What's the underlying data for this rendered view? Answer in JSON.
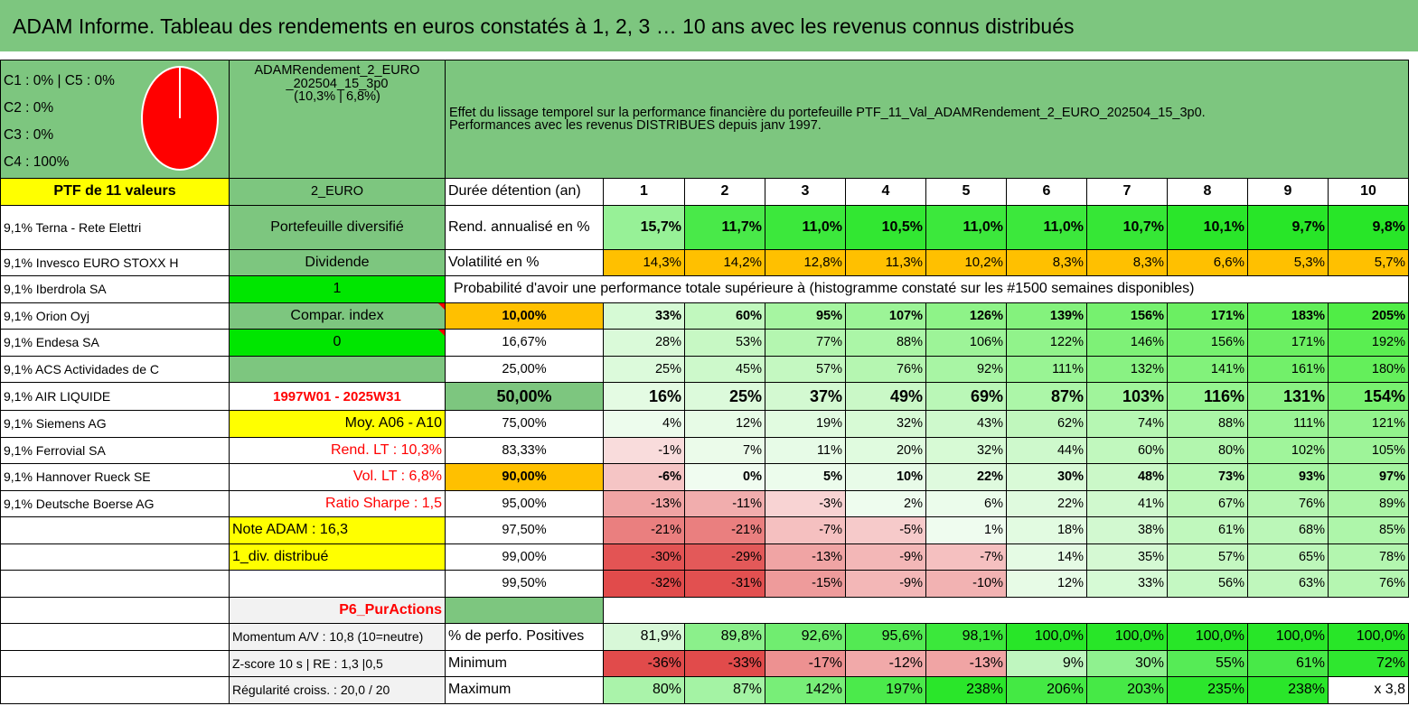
{
  "title": "ADAM Informe. Tableau des rendements en euros constatés à 1, 2, 3 … 10 ans avec les revenus connus distribués",
  "legend": {
    "lines": [
      "C1 : 0% | C5 : 0%",
      "C2 : 0%",
      "C3 : 0%",
      "C4 : 100%"
    ],
    "pie_color": "#ff0000"
  },
  "portfolio": {
    "name_line1": "ADAMRendement_2_EURO",
    "name_line2": "_202504_15_3p0",
    "name_line3": "(10,3% | 6,8%)"
  },
  "description": {
    "line1": "Effet du lissage temporel sur la performance financière du portefeuille PTF_11_Val_ADAMRendement_2_EURO_202504_15_3p0.",
    "line2": "Performances avec les revenus DISTRIBUES depuis janv 1997."
  },
  "ptf_label": "PTF de 11 valeurs",
  "currency": "2_EURO",
  "duration_label": "Durée détention (an)",
  "years": [
    "1",
    "2",
    "3",
    "4",
    "5",
    "6",
    "7",
    "8",
    "9",
    "10"
  ],
  "holdings": [
    "9,1% Terna - Rete Elettri",
    "9,1% Invesco EURO STOXX H",
    "9,1% Iberdrola SA",
    "9,1% Orion Oyj",
    "9,1% Endesa SA",
    "9,1% ACS Actividades de C",
    "9,1% AIR LIQUIDE",
    "9,1% Siemens AG",
    "9,1% Ferrovial SA",
    "9,1% Hannover Rueck SE",
    "9,1% Deutsche Boerse AG"
  ],
  "info": {
    "diversified": "Portefeuille diversifié",
    "dividend_label": "Dividende",
    "dividend_value": "1",
    "compar_label": "Compar. index",
    "compar_value": "0",
    "period": "1997W01 - 2025W31",
    "moy": "Moy. A06 - A10",
    "rend_lt": "Rend. LT : 10,3%",
    "vol_lt": "Vol. LT : 6,8%",
    "sharpe": "Ratio Sharpe : 1,5",
    "note": "Note ADAM : 16,3",
    "div": "1_div. distribué",
    "category": "P6_PurActions",
    "momentum": "Momentum A/V : 10,8 (10=neutre)",
    "zscore": "Z-score 10 s | RE : 1,3 |0,5",
    "regularite": "Régularité croiss. : 20,0 / 20"
  },
  "rend_label": "Rend. annualisé en %",
  "rend_values": [
    "15,7%",
    "11,7%",
    "11,0%",
    "10,5%",
    "11,0%",
    "11,0%",
    "10,7%",
    "10,1%",
    "9,7%",
    "9,8%"
  ],
  "vol_label": "Volatilité en %",
  "vol_values": [
    "14,3%",
    "14,2%",
    "12,8%",
    "11,3%",
    "10,2%",
    "8,3%",
    "8,3%",
    "6,6%",
    "5,3%",
    "5,7%"
  ],
  "prob_title": "Probabilité d'avoir une performance totale supérieure à (histogramme constaté sur les #1500 semaines disponibles)",
  "prob_rows": [
    {
      "p": "10,00%",
      "v": [
        "33%",
        "60%",
        "95%",
        "107%",
        "126%",
        "139%",
        "156%",
        "171%",
        "183%",
        "205%"
      ]
    },
    {
      "p": "16,67%",
      "v": [
        "28%",
        "53%",
        "77%",
        "88%",
        "106%",
        "122%",
        "146%",
        "156%",
        "171%",
        "192%"
      ]
    },
    {
      "p": "25,00%",
      "v": [
        "25%",
        "45%",
        "57%",
        "76%",
        "92%",
        "111%",
        "132%",
        "141%",
        "161%",
        "180%"
      ]
    },
    {
      "p": "50,00%",
      "v": [
        "16%",
        "25%",
        "37%",
        "49%",
        "69%",
        "87%",
        "103%",
        "116%",
        "131%",
        "154%"
      ]
    },
    {
      "p": "75,00%",
      "v": [
        "4%",
        "12%",
        "19%",
        "32%",
        "43%",
        "62%",
        "74%",
        "88%",
        "111%",
        "121%"
      ]
    },
    {
      "p": "83,33%",
      "v": [
        "-1%",
        "7%",
        "11%",
        "20%",
        "32%",
        "44%",
        "60%",
        "80%",
        "102%",
        "105%"
      ]
    },
    {
      "p": "90,00%",
      "v": [
        "-6%",
        "0%",
        "5%",
        "10%",
        "22%",
        "30%",
        "48%",
        "73%",
        "93%",
        "97%"
      ]
    },
    {
      "p": "95,00%",
      "v": [
        "-13%",
        "-11%",
        "-3%",
        "2%",
        "6%",
        "22%",
        "41%",
        "67%",
        "76%",
        "89%"
      ]
    },
    {
      "p": "97,50%",
      "v": [
        "-21%",
        "-21%",
        "-7%",
        "-5%",
        "1%",
        "18%",
        "38%",
        "61%",
        "68%",
        "85%"
      ]
    },
    {
      "p": "99,00%",
      "v": [
        "-30%",
        "-29%",
        "-13%",
        "-9%",
        "-7%",
        "14%",
        "35%",
        "57%",
        "65%",
        "78%"
      ]
    },
    {
      "p": "99,50%",
      "v": [
        "-32%",
        "-31%",
        "-15%",
        "-9%",
        "-10%",
        "12%",
        "33%",
        "56%",
        "63%",
        "76%"
      ]
    }
  ],
  "positive_label": "% de perfo. Positives",
  "positive_values": [
    "81,9%",
    "89,8%",
    "92,6%",
    "95,6%",
    "98,1%",
    "100,0%",
    "100,0%",
    "100,0%",
    "100,0%",
    "100,0%"
  ],
  "min_label": "Minimum",
  "min_values": [
    "-36%",
    "-33%",
    "-17%",
    "-12%",
    "-13%",
    "9%",
    "30%",
    "55%",
    "61%",
    "72%"
  ],
  "max_label": "Maximum",
  "max_values": [
    "80%",
    "87%",
    "142%",
    "197%",
    "238%",
    "206%",
    "203%",
    "235%",
    "238%"
  ],
  "max_ratio": "x 3,8",
  "colors": {
    "title_bg": "#7dc67f",
    "yellow": "#ffff00",
    "orange": "#ffc000",
    "bright_green": "#00e600",
    "red_text": "#ff0000"
  }
}
